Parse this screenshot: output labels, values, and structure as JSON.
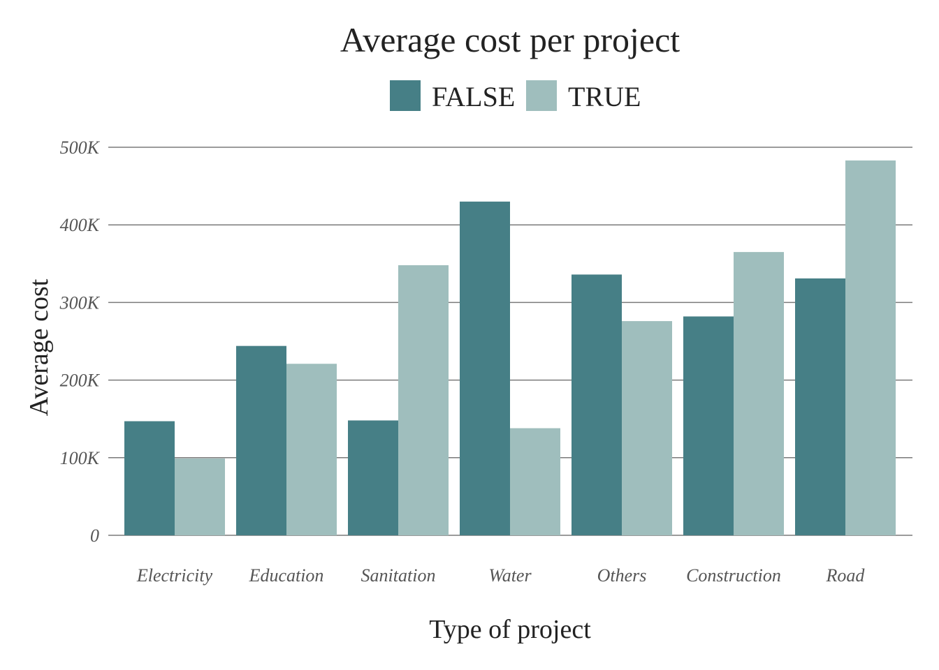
{
  "chart_data": {
    "type": "bar",
    "title": "Average cost per project",
    "xlabel": "Type of project",
    "ylabel": "Average cost",
    "categories": [
      "Electricity",
      "Education",
      "Sanitation",
      "Water",
      "Others",
      "Construction",
      "Road"
    ],
    "series": [
      {
        "name": "FALSE",
        "color": "#467f86",
        "values": [
          147000,
          244000,
          148000,
          430000,
          336000,
          282000,
          331000
        ]
      },
      {
        "name": "TRUE",
        "color": "#9fbebd",
        "values": [
          99000,
          221000,
          348000,
          138000,
          276000,
          365000,
          483000
        ]
      }
    ],
    "ylim": [
      0,
      500000
    ],
    "yticks": [
      0,
      100000,
      200000,
      300000,
      400000,
      500000
    ],
    "ytick_labels": [
      "0",
      "100K",
      "200K",
      "300K",
      "400K",
      "500K"
    ],
    "legend_position": "top",
    "grid": "horizontal"
  }
}
